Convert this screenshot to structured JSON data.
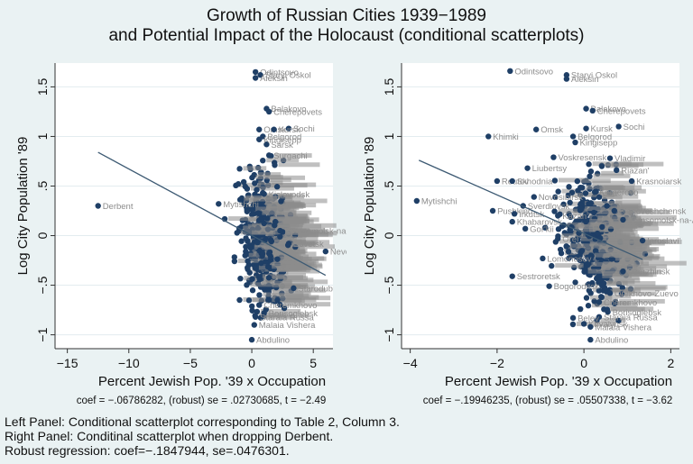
{
  "figure": {
    "title_line1": "Growth of Russian Cities 1939−1989",
    "title_line2": "and Potential Impact of the Holocaust (conditional scatterplots)",
    "notes": [
      "Left Panel: Conditional scatterplot corresponding to Table 2, Column 3.",
      "Right Panel: Conditinal scatterplot when dropping Derbent.",
      "Robust regression: coef=−.1847944, se=.0476301."
    ],
    "colors": {
      "background": "#eaf2f3",
      "plot_background": "#ffffff",
      "marker": "#1f3f66",
      "label": "#8c8c8c",
      "fit_line": "#3d5a73",
      "grid": "#e3ecef"
    }
  },
  "chart_data": [
    {
      "type": "scatter",
      "panel": "left",
      "title": "",
      "xlabel": "Percent Jewish Pop. '39 x Occupation",
      "ylabel": "Log City Population '89",
      "xlim": [
        -16,
        6.6
      ],
      "ylim": [
        -1.14,
        1.74
      ],
      "xticks": [
        -15,
        -10,
        -5,
        0,
        5
      ],
      "xtick_labels": [
        "−15",
        "−10",
        "−5",
        "0",
        "5"
      ],
      "yticks": [
        1.5,
        1,
        0.5,
        0,
        -0.5,
        -1
      ],
      "ytick_labels": [
        "1.5",
        "1",
        ".5",
        "0",
        "−.5",
        "−1"
      ],
      "grid": true,
      "caption": "coef = −.06786282, (robust) se = .02730685, t = −2.49",
      "fit_line": {
        "x": [
          -12.5,
          6.0
        ],
        "y": [
          0.84,
          -0.4
        ]
      },
      "labeled_points": [
        {
          "label": "Odintsovo",
          "x": 0.3,
          "y": 1.65
        },
        {
          "label": "Staryi Oskol",
          "x": 0.7,
          "y": 1.62
        },
        {
          "label": "Aleksin",
          "x": 0.3,
          "y": 1.59
        },
        {
          "label": "Balakovo",
          "x": 1.2,
          "y": 1.28
        },
        {
          "label": "Cherepovets",
          "x": 1.4,
          "y": 1.25
        },
        {
          "label": "Sochi",
          "x": 3.0,
          "y": 1.08
        },
        {
          "label": "Omsk",
          "x": 0.6,
          "y": 1.07
        },
        {
          "label": "Kursk",
          "x": 1.8,
          "y": 1.07
        },
        {
          "label": "Sarsk",
          "x": 1.2,
          "y": 0.92
        },
        {
          "label": "Belgorod",
          "x": 0.9,
          "y": 1.0
        },
        {
          "label": "Kingisepp",
          "x": 0.6,
          "y": 0.97
        },
        {
          "label": "Surgachi",
          "x": 1.4,
          "y": 0.81
        },
        {
          "label": "Mytishchi",
          "x": -2.7,
          "y": 0.32
        },
        {
          "label": "Derbent",
          "x": -12.5,
          "y": 0.3
        },
        {
          "label": "Kislovodsk",
          "x": 1.0,
          "y": 0.42
        },
        {
          "label": "Komsomolsk-na-Amure",
          "x": 2.3,
          "y": 0.05
        },
        {
          "label": "Nevel",
          "x": 6.0,
          "y": -0.16
        },
        {
          "label": "Sovetsk",
          "x": 3.0,
          "y": -0.08
        },
        {
          "label": "Starodub",
          "x": 3.4,
          "y": -0.53
        },
        {
          "label": "Cheremkhovo",
          "x": 0.6,
          "y": -0.7
        },
        {
          "label": "Borisoglebsk",
          "x": 1.0,
          "y": -0.78
        },
        {
          "label": "Staraia Russa",
          "x": 0.3,
          "y": -0.82
        },
        {
          "label": "Malaia Vishera",
          "x": 0.2,
          "y": -0.9
        },
        {
          "label": "Abdulino",
          "x": 0.0,
          "y": -1.05
        }
      ]
    },
    {
      "type": "scatter",
      "panel": "right",
      "title": "",
      "xlabel": "Percent Jewish Pop. '39 x Occupation",
      "ylabel": "Log City Population '89",
      "xlim": [
        -4.2,
        2.2
      ],
      "ylim": [
        -1.14,
        1.74
      ],
      "xticks": [
        -4,
        -2,
        0,
        2
      ],
      "xtick_labels": [
        "−4",
        "−2",
        "0",
        "2"
      ],
      "yticks": [
        1.5,
        1,
        0.5,
        0,
        -0.5,
        -1
      ],
      "ytick_labels": [
        "1.5",
        "1",
        ".5",
        "0",
        "−.5",
        "−1"
      ],
      "grid": true,
      "caption": "coef = −.19946235, (robust) se = .05507338, t = −3.62",
      "fit_line": {
        "x": [
          -3.8,
          1.35
        ],
        "y": [
          0.76,
          -0.24
        ]
      },
      "labeled_points": [
        {
          "label": "Odintsovo",
          "x": -1.7,
          "y": 1.66
        },
        {
          "label": "Staryi Oskol",
          "x": -0.4,
          "y": 1.62
        },
        {
          "label": "Aleksin",
          "x": -0.4,
          "y": 1.58
        },
        {
          "label": "Balakovo",
          "x": 0.05,
          "y": 1.28
        },
        {
          "label": "Cherepovets",
          "x": 0.2,
          "y": 1.26
        },
        {
          "label": "Sochi",
          "x": 0.8,
          "y": 1.1
        },
        {
          "label": "Omsk",
          "x": -1.1,
          "y": 1.07
        },
        {
          "label": "Kursk",
          "x": 0.05,
          "y": 1.08
        },
        {
          "label": "Khimki",
          "x": -2.2,
          "y": 1.0
        },
        {
          "label": "Belgorod",
          "x": -0.25,
          "y": 1.0
        },
        {
          "label": "Kingisepp",
          "x": -0.2,
          "y": 0.94
        },
        {
          "label": "Voskresensk",
          "x": -0.7,
          "y": 0.79
        },
        {
          "label": "Vladimir",
          "x": 0.6,
          "y": 0.78
        },
        {
          "label": "Liubertsy",
          "x": -1.3,
          "y": 0.68
        },
        {
          "label": "Riazan'",
          "x": 0.75,
          "y": 0.66
        },
        {
          "label": "Reutov",
          "x": -2.0,
          "y": 0.55
        },
        {
          "label": "Skhodnia",
          "x": -1.65,
          "y": 0.55
        },
        {
          "label": "Krasnoiarsk",
          "x": 1.1,
          "y": 0.55
        },
        {
          "label": "Kemerovo",
          "x": 0.25,
          "y": 0.44
        },
        {
          "label": "Novosibirsk",
          "x": -1.15,
          "y": 0.39
        },
        {
          "label": "Mytishchi",
          "x": -3.85,
          "y": 0.35
        },
        {
          "label": "Sverdlovsk",
          "x": -1.4,
          "y": 0.3
        },
        {
          "label": "Pushkino",
          "x": -2.1,
          "y": 0.25
        },
        {
          "label": "Blagoveshchensk",
          "x": 0.7,
          "y": 0.25
        },
        {
          "label": "Irkutsk",
          "x": -1.6,
          "y": 0.22
        },
        {
          "label": "Kazan'",
          "x": -0.6,
          "y": 0.2
        },
        {
          "label": "Khabarovsk",
          "x": -1.65,
          "y": 0.14
        },
        {
          "label": "Komsomolsk-na-Amure",
          "x": 0.9,
          "y": 0.16
        },
        {
          "label": "Gor'kii",
          "x": -1.35,
          "y": 0.07
        },
        {
          "label": "Orel",
          "x": -0.6,
          "y": -0.03
        },
        {
          "label": "Iaroslavl'",
          "x": 1.35,
          "y": -0.05
        },
        {
          "label": "Lomonosov",
          "x": -0.95,
          "y": -0.23
        },
        {
          "label": "Dzerzhinsk",
          "x": 0.9,
          "y": -0.36
        },
        {
          "label": "Sestroretsk",
          "x": -1.65,
          "y": -0.41
        },
        {
          "label": "Bogoroditsk",
          "x": -0.8,
          "y": -0.51
        },
        {
          "label": "Orekhovo-Zuevo",
          "x": 0.6,
          "y": -0.58
        },
        {
          "label": "Cheremkhovo",
          "x": 0.35,
          "y": -0.67
        },
        {
          "label": "Borisoglebsk",
          "x": 0.55,
          "y": -0.77
        },
        {
          "label": "Staraia Russa",
          "x": 0.35,
          "y": -0.82
        },
        {
          "label": "Belev",
          "x": -0.25,
          "y": -0.83
        },
        {
          "label": "Khvalynsk",
          "x": 0.0,
          "y": -0.89
        },
        {
          "label": "Malaia Vishera",
          "x": 0.15,
          "y": -0.92
        },
        {
          "label": "Abdulino",
          "x": 0.15,
          "y": -1.05
        }
      ]
    }
  ]
}
